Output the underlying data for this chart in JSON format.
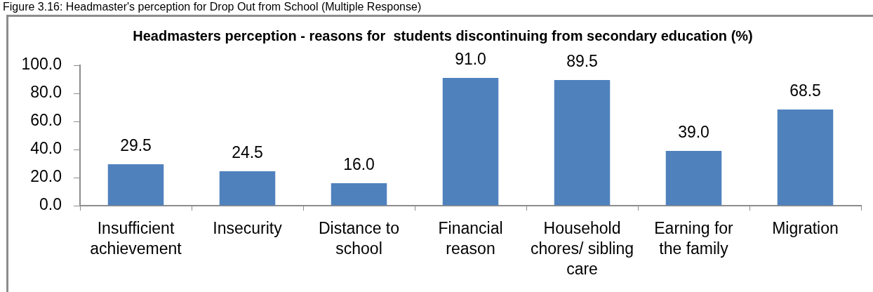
{
  "chart_data": {
    "type": "bar",
    "title": "Headmasters perception - reasons for  students discontinuing from secondary education (%)",
    "annotations": [
      "Figure 3.16: Headmaster's perception for Drop Out from School (Multiple Response)"
    ],
    "categories": [
      "Insufficient achievement",
      "Insecurity",
      "Distance to school",
      "Financial reason",
      "Household chores/ sibling care",
      "Earning for the family",
      "Migration"
    ],
    "values": [
      29.5,
      24.5,
      16.0,
      91.0,
      89.5,
      39.0,
      68.5
    ],
    "value_labels": [
      "29.5",
      "24.5",
      "16.0",
      "91.0",
      "89.5",
      "39.0",
      "68.5"
    ],
    "color": "#4f81bd",
    "ylim": [
      0,
      100
    ],
    "yticks": [
      {
        "value": 0,
        "label": "0.0"
      },
      {
        "value": 20,
        "label": "20.0"
      },
      {
        "value": 40,
        "label": "40.0"
      },
      {
        "value": 60,
        "label": "60.0"
      },
      {
        "value": 80,
        "label": "80.0"
      },
      {
        "value": 100,
        "label": "100.0"
      }
    ]
  }
}
